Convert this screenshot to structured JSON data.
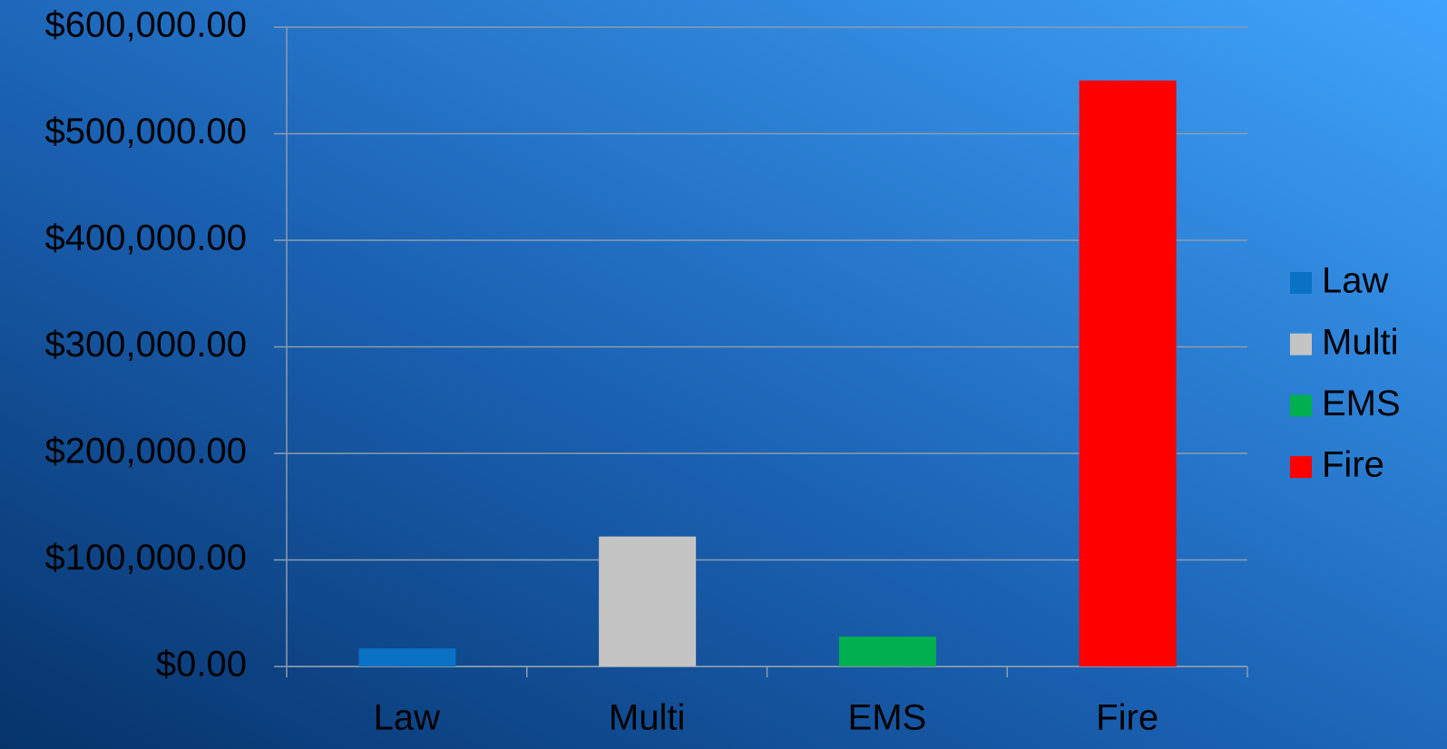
{
  "chart_data": {
    "type": "bar",
    "categories": [
      "Law",
      "Multi",
      "EMS",
      "Fire"
    ],
    "values": [
      17000,
      122000,
      28000,
      550000
    ],
    "colors": [
      "#0a72c4",
      "#c4c4c4",
      "#00b050",
      "#ff0000"
    ],
    "ylim": [
      0,
      600000
    ],
    "yticks": [
      {
        "value": 0,
        "label": "$0.00"
      },
      {
        "value": 100000,
        "label": "$100,000.00"
      },
      {
        "value": 200000,
        "label": "$200,000.00"
      },
      {
        "value": 300000,
        "label": "$300,000.00"
      },
      {
        "value": 400000,
        "label": "$400,000.00"
      },
      {
        "value": 500000,
        "label": "$500,000.00"
      },
      {
        "value": 600000,
        "label": "$600,000.00"
      }
    ],
    "grid": true,
    "legend": "right"
  }
}
